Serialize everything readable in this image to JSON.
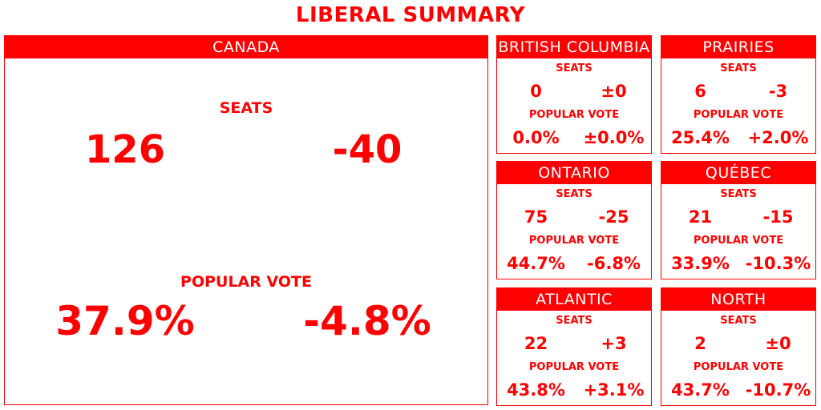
{
  "title": "LIBERAL SUMMARY",
  "canada": {
    "name": "CANADA",
    "seats_label": "SEATS",
    "seats": "126",
    "seats_change": "-40",
    "vote_label": "POPULAR VOTE",
    "vote": "37.9%",
    "vote_change": "-4.8%"
  },
  "regions": [
    {
      "name": "BRITISH COLUMBIA",
      "seats_label": "SEATS",
      "seats": "0",
      "seats_change": "±0",
      "vote_label": "POPULAR VOTE",
      "vote": "0.0%",
      "vote_change": "±0.0%"
    },
    {
      "name": "PRAIRIES",
      "seats_label": "SEATS",
      "seats": "6",
      "seats_change": "-3",
      "vote_label": "POPULAR VOTE",
      "vote": "25.4%",
      "vote_change": "+2.0%"
    },
    {
      "name": "ONTARIO",
      "seats_label": "SEATS",
      "seats": "75",
      "seats_change": "-25",
      "vote_label": "POPULAR VOTE",
      "vote": "44.7%",
      "vote_change": "-6.8%"
    },
    {
      "name": "QUÉBEC",
      "seats_label": "SEATS",
      "seats": "21",
      "seats_change": "-15",
      "vote_label": "POPULAR VOTE",
      "vote": "33.9%",
      "vote_change": "-10.3%"
    },
    {
      "name": "ATLANTIC",
      "seats_label": "SEATS",
      "seats": "22",
      "seats_change": "+3",
      "vote_label": "POPULAR VOTE",
      "vote": "43.8%",
      "vote_change": "+3.1%"
    },
    {
      "name": "NORTH",
      "seats_label": "SEATS",
      "seats": "2",
      "seats_change": "±0",
      "vote_label": "POPULAR VOTE",
      "vote": "43.7%",
      "vote_change": "-10.7%"
    }
  ],
  "colors": {
    "accent": "#ff0000",
    "background": "#ffffff",
    "header_text": "#ffffff"
  }
}
